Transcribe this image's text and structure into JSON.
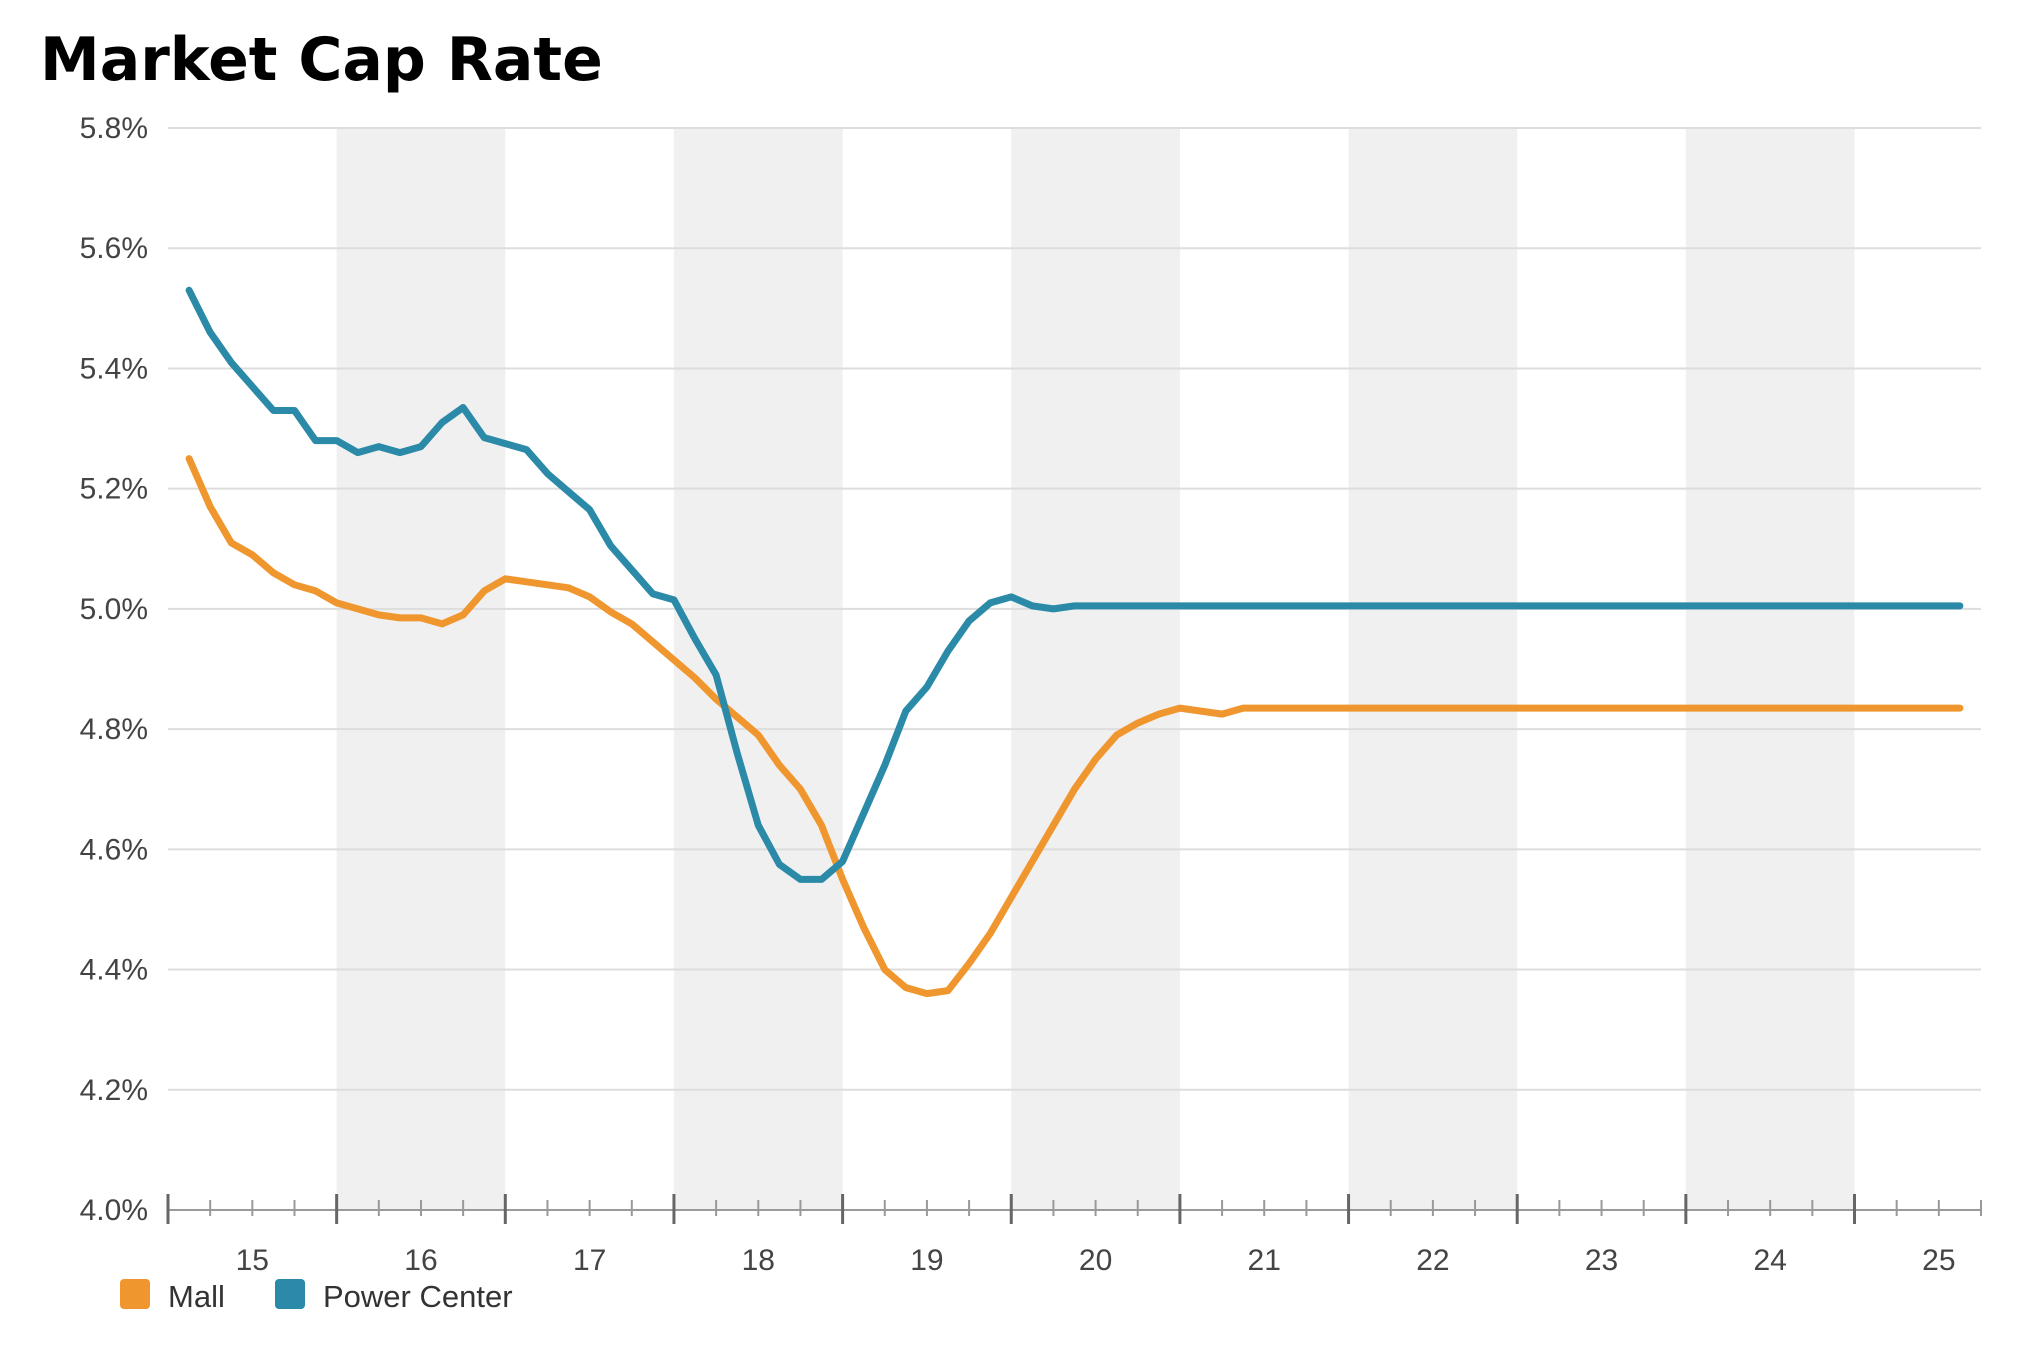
{
  "chart_data": {
    "type": "line",
    "title": "Market Cap Rate",
    "xlabel": "",
    "ylabel": "",
    "ylim": [
      4.0,
      5.8
    ],
    "yticks": [
      "5.8%",
      "5.6%",
      "5.4%",
      "5.2%",
      "5.0%",
      "4.8%",
      "4.6%",
      "4.4%",
      "4.2%",
      "4.0%"
    ],
    "ytick_values": [
      5.8,
      5.6,
      5.4,
      5.2,
      5.0,
      4.8,
      4.6,
      4.4,
      4.2,
      4.0
    ],
    "xlim": [
      14.5,
      25.25
    ],
    "xticks": [
      "15",
      "16",
      "17",
      "18",
      "19",
      "20",
      "21",
      "22",
      "23",
      "24",
      "25"
    ],
    "xtick_values": [
      15,
      16,
      17,
      18,
      19,
      20,
      21,
      22,
      23,
      24,
      25
    ],
    "shaded_years": [
      16,
      18,
      20,
      22,
      24
    ],
    "legend_position": "bottom",
    "x": [
      14.625,
      14.75,
      14.875,
      15.0,
      15.125,
      15.25,
      15.375,
      15.5,
      15.625,
      15.75,
      15.875,
      16.0,
      16.125,
      16.25,
      16.375,
      16.5,
      16.625,
      16.75,
      16.875,
      17.0,
      17.125,
      17.25,
      17.375,
      17.5,
      17.625,
      17.75,
      17.875,
      18.0,
      18.125,
      18.25,
      18.375,
      18.5,
      18.625,
      18.75,
      18.875,
      19.0,
      19.125,
      19.25,
      19.375,
      19.5,
      19.625,
      19.75,
      19.875,
      20.0,
      20.125,
      20.25,
      20.375,
      20.5,
      20.625,
      20.75,
      20.875,
      21.0,
      21.125,
      21.25,
      21.375,
      21.5,
      21.625,
      21.75,
      21.875,
      22.0,
      22.125,
      22.25,
      22.375,
      22.5,
      22.625,
      22.75,
      22.875,
      23.0,
      23.125,
      23.25,
      23.375,
      23.5,
      23.625,
      23.75,
      23.875,
      24.0,
      24.125,
      24.25,
      24.375,
      24.5,
      24.625,
      24.75,
      24.875,
      25.0,
      25.125
    ],
    "series": [
      {
        "name": "Mall",
        "color": "#f0962e",
        "values": [
          5.25,
          5.17,
          5.11,
          5.09,
          5.06,
          5.04,
          5.03,
          5.01,
          5.0,
          4.99,
          4.985,
          4.985,
          4.975,
          4.99,
          5.03,
          5.05,
          5.045,
          5.04,
          5.035,
          5.02,
          4.995,
          4.975,
          4.945,
          4.915,
          4.885,
          4.85,
          4.82,
          4.79,
          4.74,
          4.7,
          4.64,
          4.55,
          4.47,
          4.4,
          4.37,
          4.36,
          4.365,
          4.41,
          4.46,
          4.52,
          4.58,
          4.64,
          4.7,
          4.75,
          4.79,
          4.81,
          4.825,
          4.835,
          4.83,
          4.825,
          4.835,
          4.835,
          4.835,
          4.835,
          4.835,
          4.835,
          4.835,
          4.835,
          4.835,
          4.835,
          4.835,
          4.835,
          4.835,
          4.835,
          4.835,
          4.835,
          4.835,
          4.835,
          4.835,
          4.835,
          4.835,
          4.835,
          4.835,
          4.835,
          4.835,
          4.835,
          4.835,
          4.835,
          4.835,
          4.835,
          4.835,
          4.835,
          4.835,
          4.835,
          4.835
        ]
      },
      {
        "name": "Power Center",
        "color": "#2a8aa8",
        "values": [
          5.53,
          5.46,
          5.41,
          5.37,
          5.33,
          5.33,
          5.28,
          5.28,
          5.26,
          5.27,
          5.26,
          5.27,
          5.31,
          5.335,
          5.285,
          5.275,
          5.265,
          5.225,
          5.195,
          5.165,
          5.105,
          5.065,
          5.025,
          5.015,
          4.95,
          4.89,
          4.76,
          4.64,
          4.575,
          4.55,
          4.55,
          4.58,
          4.66,
          4.74,
          4.83,
          4.87,
          4.93,
          4.98,
          5.01,
          5.02,
          5.005,
          5.0,
          5.005,
          5.005,
          5.005,
          5.005,
          5.005,
          5.005,
          5.005,
          5.005,
          5.005,
          5.005,
          5.005,
          5.005,
          5.005,
          5.005,
          5.005,
          5.005,
          5.005,
          5.005,
          5.005,
          5.005,
          5.005,
          5.005,
          5.005,
          5.005,
          5.005,
          5.005,
          5.005,
          5.005,
          5.005,
          5.005,
          5.005,
          5.005,
          5.005,
          5.005,
          5.005,
          5.005,
          5.005,
          5.005,
          5.005,
          5.005,
          5.005,
          5.005,
          5.005
        ]
      }
    ]
  }
}
